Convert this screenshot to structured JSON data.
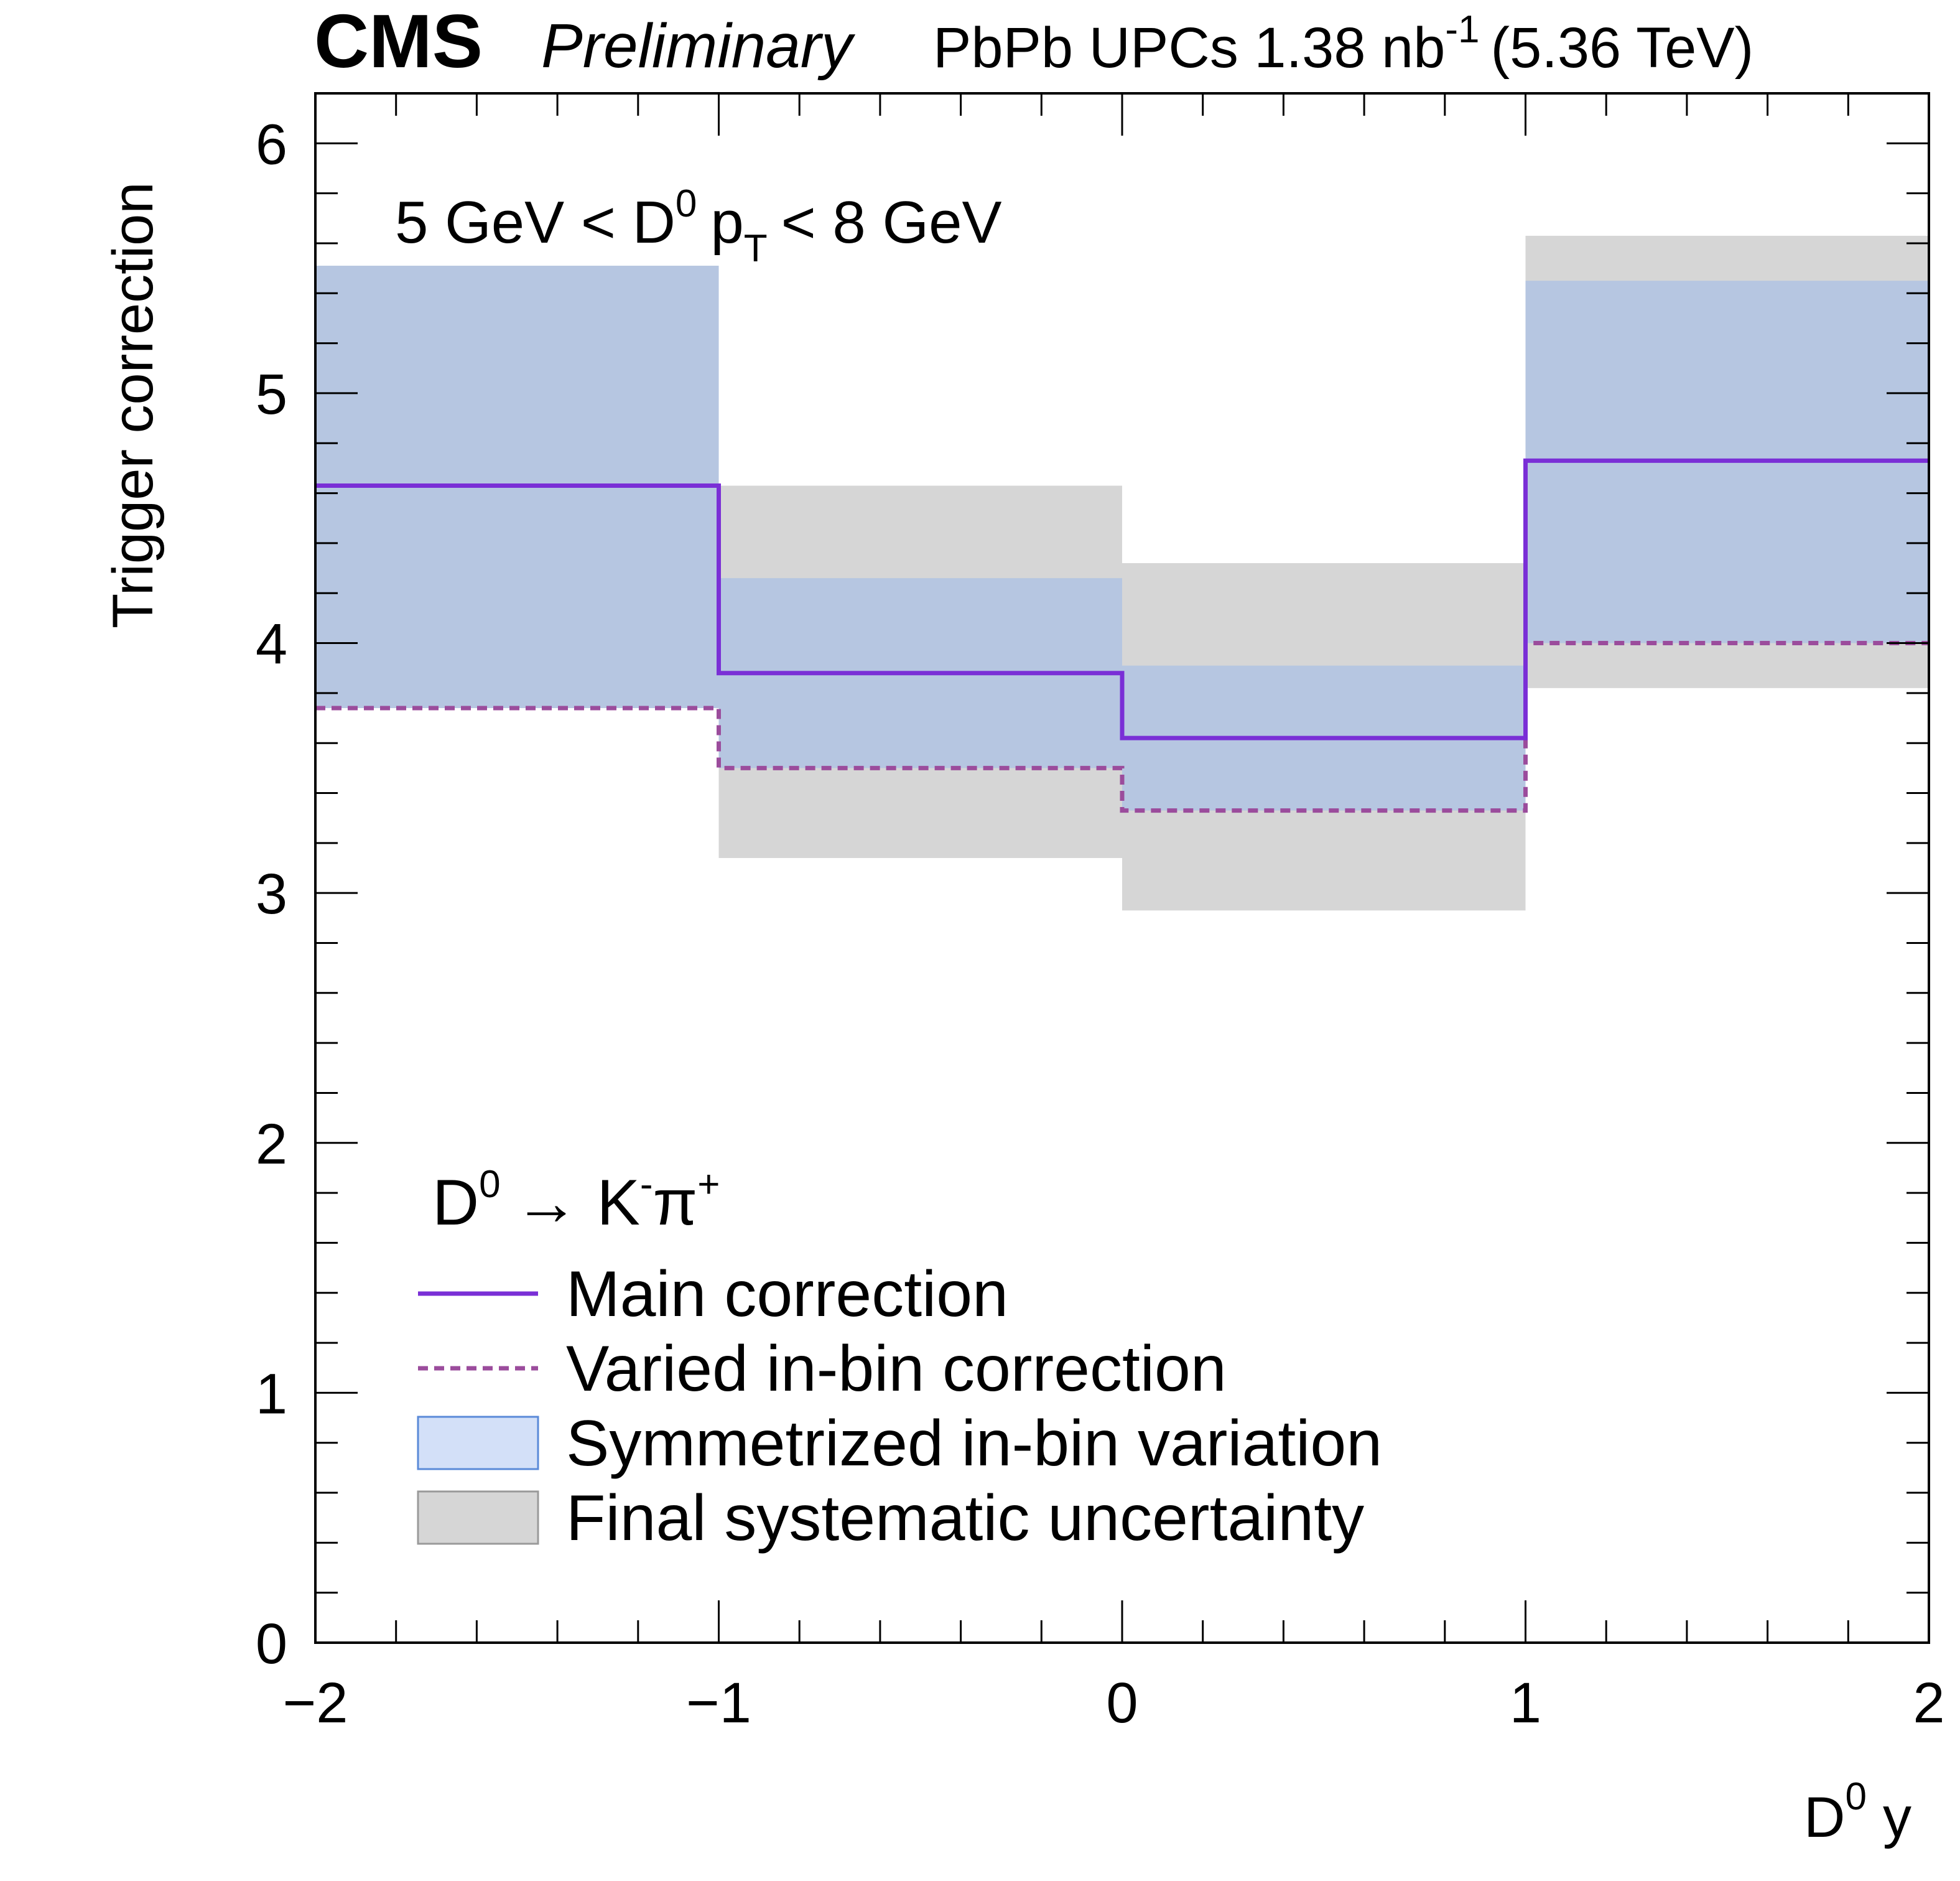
{
  "header": {
    "experiment": "CMS",
    "status": "Preliminary",
    "lumi_main": "PbPb UPCs 1.38 nb",
    "lumi_sup": "-1",
    "lumi_energy": "(5.36 TeV)"
  },
  "annotation": {
    "pre": "5 GeV < D",
    "sup": "0",
    "p": "p",
    "sub": "T",
    "post": "< 8 GeV"
  },
  "chart_data": {
    "type": "step",
    "title": "",
    "xlabel": "D0 y",
    "xlabel_main": "D",
    "xlabel_sup": "0",
    "xlabel_post": "y",
    "ylabel": "Trigger correction",
    "xlim": [
      -2,
      2
    ],
    "ylim": [
      0,
      6.2
    ],
    "x_ticks": [
      -2,
      -1,
      0,
      1,
      2
    ],
    "x_tick_labels": [
      "−2",
      "−1",
      "0",
      "1",
      "2"
    ],
    "y_ticks": [
      0,
      1,
      2,
      3,
      4,
      5,
      6
    ],
    "y_tick_labels": [
      "0",
      "1",
      "2",
      "3",
      "4",
      "5",
      "6"
    ],
    "bins": [
      [
        -2,
        -1
      ],
      [
        -1,
        0
      ],
      [
        0,
        1
      ],
      [
        1,
        2
      ]
    ],
    "series": [
      {
        "name": "Main correction",
        "style": "solid",
        "color": "#7a2fd6",
        "values": [
          4.63,
          3.88,
          3.62,
          4.73
        ]
      },
      {
        "name": "Varied in-bin correction",
        "style": "dashed",
        "color": "#9b4c9c",
        "values": [
          3.74,
          3.5,
          3.33,
          4.0
        ]
      },
      {
        "name": "Symmetrized in-bin variation",
        "style": "band",
        "color": "#b6c6e1",
        "low": [
          3.74,
          3.5,
          3.33,
          4.0
        ],
        "high": [
          5.51,
          4.26,
          3.91,
          5.45
        ]
      },
      {
        "name": "Final systematic uncertainty",
        "style": "band",
        "color": "#d6d6d6",
        "low": [
          3.74,
          3.14,
          2.93,
          3.82
        ],
        "high": [
          5.51,
          4.63,
          4.32,
          5.63
        ]
      }
    ],
    "legend": {
      "position": "bottom-left",
      "title_main": "D",
      "title_sup1": "0",
      "title_arrow": "→ K",
      "title_sup2": "-",
      "title_pi": "π",
      "title_sup3": "+",
      "entries": [
        "Main correction",
        "Varied in-bin correction",
        "Symmetrized in-bin variation",
        "Final systematic uncertainty"
      ]
    }
  }
}
